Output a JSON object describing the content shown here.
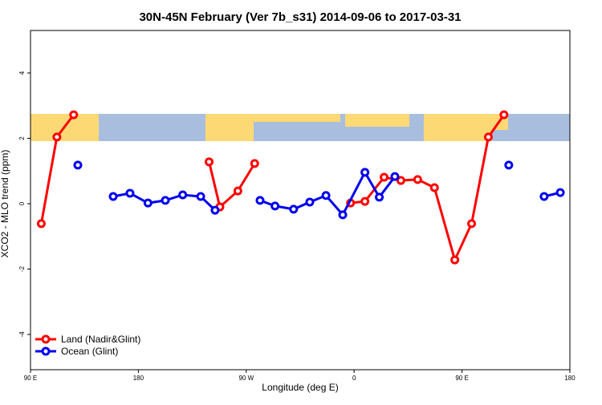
{
  "chart_data": {
    "type": "line",
    "title": "30N-45N February (Ver 7b_s31)   2014-09-06 to 2017-03-31",
    "x_label": "Longitude (deg E)",
    "y_label": "XCO2 - MLO trend (ppm)",
    "xlim": [
      90,
      540
    ],
    "ylim": [
      -5.08,
      5.3
    ],
    "xticks": [
      {
        "value": 90,
        "label": "90 E"
      },
      {
        "value": 180,
        "label": "180"
      },
      {
        "value": 270,
        "label": "90 W"
      },
      {
        "value": 360,
        "label": "0"
      },
      {
        "value": 450,
        "label": "90 E"
      },
      {
        "value": 540,
        "label": "180"
      }
    ],
    "yticks": [
      -4,
      -2,
      0,
      2,
      4
    ],
    "legend": "bottom-left",
    "series": [
      {
        "name": "Land (Nadir&Glint)",
        "color": "#ff0000",
        "x": [
          99,
          112,
          126,
          null,
          239,
          248,
          263,
          277,
          null,
          357,
          369,
          385,
          399,
          413,
          427,
          444,
          458,
          472,
          485
        ],
        "values": [
          -0.61,
          2.04,
          2.72,
          null,
          1.28,
          -0.1,
          0.39,
          1.23,
          null,
          0.02,
          0.07,
          0.81,
          0.71,
          0.74,
          0.49,
          -1.72,
          -0.61,
          2.04,
          2.72
        ]
      },
      {
        "name": "Ocean (Glint)",
        "color": "#0000ee",
        "x": [
          129.5,
          null,
          159,
          173,
          188,
          202.5,
          217,
          232,
          244,
          null,
          281.5,
          294,
          309.5,
          323,
          336.5,
          350.5,
          369,
          381,
          394,
          null,
          489,
          null,
          518.5,
          532
        ],
        "values": [
          1.18,
          null,
          0.22,
          0.32,
          0.02,
          0.1,
          0.27,
          0.22,
          -0.2,
          null,
          0.1,
          -0.07,
          -0.17,
          0.05,
          0.25,
          -0.34,
          0.96,
          0.2,
          0.83,
          null,
          1.18,
          null,
          0.22,
          0.34
        ]
      }
    ]
  }
}
